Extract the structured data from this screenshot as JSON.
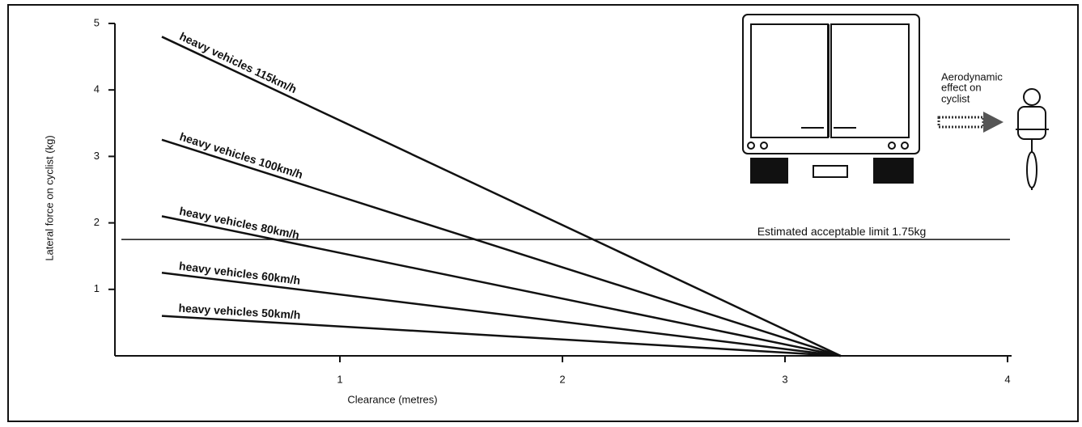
{
  "chart_data": {
    "type": "line",
    "x_label": "Clearance (metres)",
    "y_label": "Lateral force on cyclist (kg)",
    "x": [
      0.2,
      3.25
    ],
    "series": [
      {
        "name": "heavy vehicles 115km/h",
        "color": "#111111",
        "values": [
          4.8,
          0
        ]
      },
      {
        "name": "heavy vehicles 100km/h",
        "color": "#111111",
        "values": [
          3.25,
          0
        ]
      },
      {
        "name": "heavy vehicles 80km/h",
        "color": "#111111",
        "values": [
          2.1,
          0
        ]
      },
      {
        "name": "heavy vehicles 60km/h",
        "color": "#111111",
        "values": [
          1.25,
          0
        ]
      },
      {
        "name": "heavy vehicles 50km/h",
        "color": "#111111",
        "values": [
          0.6,
          0
        ]
      }
    ],
    "reference_line": {
      "value": 1.75,
      "label": "Estimated acceptable limit 1.75kg"
    },
    "annotation": [
      "Aerodynamic",
      "effect on",
      "cyclist"
    ],
    "xlim": [
      0,
      4
    ],
    "ylim": [
      0,
      5
    ],
    "xticks": [
      1,
      2,
      3,
      4
    ],
    "yticks": [
      1,
      2,
      3,
      4,
      5
    ]
  }
}
